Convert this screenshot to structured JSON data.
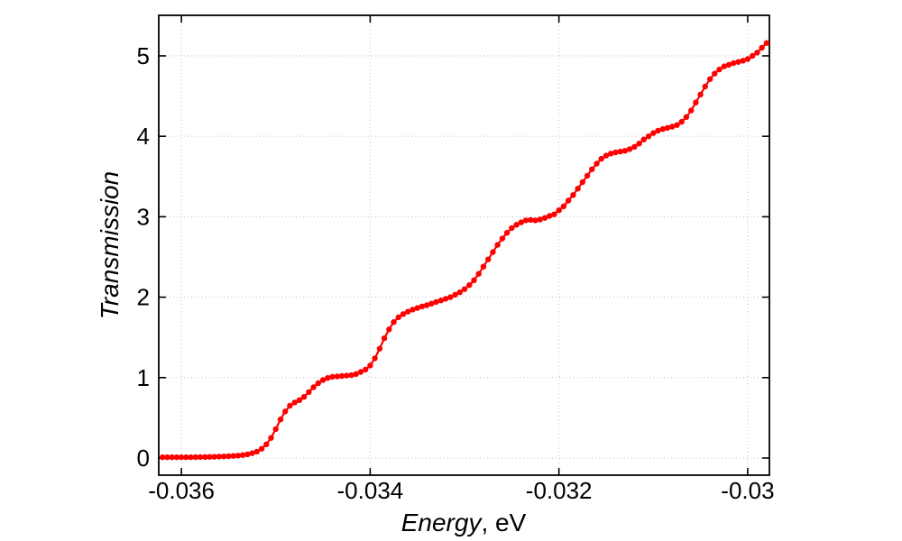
{
  "figure": {
    "background": "#ffffff",
    "colors": {
      "series_red": "#ff0000",
      "grid": "#c2c2c2",
      "axis": "#000000",
      "text": "#000000"
    }
  },
  "chart_data": {
    "type": "line",
    "title": "",
    "xlabel_parts": [
      {
        "text": "Energy",
        "italic": true
      },
      {
        "text": ", eV",
        "italic": false
      }
    ],
    "ylabel": "Transmission",
    "legend": "none",
    "grid": true,
    "marker": "filled-circle",
    "xlim": [
      -0.03624,
      -0.02977
    ],
    "ylim": [
      -0.213,
      5.504
    ],
    "x_tick_values": [
      -0.036,
      -0.034,
      -0.032,
      -0.03
    ],
    "x_tick_labels": [
      "-0.036",
      "-0.034",
      "-0.032",
      "-0.03"
    ],
    "y_tick_values": [
      0,
      1,
      2,
      3,
      4,
      5
    ],
    "y_tick_labels": [
      "0",
      "1",
      "2",
      "3",
      "4",
      "5"
    ],
    "series": [
      {
        "name": "Transmission",
        "color": "#ff0000",
        "x": [
          -0.0362,
          -0.03615,
          -0.0361,
          -0.03605,
          -0.036,
          -0.03595,
          -0.0359,
          -0.03585,
          -0.0358,
          -0.03575,
          -0.0357,
          -0.03565,
          -0.0356,
          -0.03555,
          -0.0355,
          -0.03545,
          -0.0354,
          -0.03535,
          -0.0353,
          -0.03525,
          -0.0352,
          -0.03515,
          -0.0351,
          -0.03505,
          -0.035,
          -0.03495,
          -0.0349,
          -0.03485,
          -0.0348,
          -0.03475,
          -0.0347,
          -0.03465,
          -0.0346,
          -0.03455,
          -0.0345,
          -0.03445,
          -0.0344,
          -0.03435,
          -0.0343,
          -0.03425,
          -0.0342,
          -0.03415,
          -0.0341,
          -0.03405,
          -0.034,
          -0.03395,
          -0.0339,
          -0.03385,
          -0.0338,
          -0.03375,
          -0.0337,
          -0.03365,
          -0.0336,
          -0.03355,
          -0.0335,
          -0.03345,
          -0.0334,
          -0.03335,
          -0.0333,
          -0.03325,
          -0.0332,
          -0.03315,
          -0.0331,
          -0.03305,
          -0.033,
          -0.03295,
          -0.0329,
          -0.03285,
          -0.0328,
          -0.03275,
          -0.0327,
          -0.03265,
          -0.0326,
          -0.03255,
          -0.0325,
          -0.03245,
          -0.0324,
          -0.03235,
          -0.0323,
          -0.03225,
          -0.0322,
          -0.03215,
          -0.0321,
          -0.03205,
          -0.032,
          -0.03195,
          -0.0319,
          -0.03185,
          -0.0318,
          -0.03175,
          -0.0317,
          -0.03165,
          -0.0316,
          -0.03155,
          -0.0315,
          -0.03145,
          -0.0314,
          -0.03135,
          -0.0313,
          -0.03125,
          -0.0312,
          -0.03115,
          -0.0311,
          -0.03105,
          -0.031,
          -0.03095,
          -0.0309,
          -0.03085,
          -0.0308,
          -0.03075,
          -0.0307,
          -0.03065,
          -0.0306,
          -0.03055,
          -0.0305,
          -0.03045,
          -0.0304,
          -0.03035,
          -0.0303,
          -0.03025,
          -0.0302,
          -0.03015,
          -0.0301,
          -0.03005,
          -0.03,
          -0.02995,
          -0.0299,
          -0.02985,
          -0.0298
        ],
        "y": [
          0.01,
          0.01,
          0.01,
          0.01,
          0.01,
          0.01,
          0.01,
          0.011,
          0.012,
          0.013,
          0.014,
          0.016,
          0.018,
          0.02,
          0.022,
          0.026,
          0.03,
          0.037,
          0.046,
          0.06,
          0.08,
          0.115,
          0.17,
          0.25,
          0.36,
          0.48,
          0.58,
          0.65,
          0.69,
          0.72,
          0.76,
          0.82,
          0.88,
          0.93,
          0.97,
          0.995,
          1.01,
          1.015,
          1.02,
          1.025,
          1.03,
          1.045,
          1.07,
          1.1,
          1.15,
          1.24,
          1.36,
          1.49,
          1.6,
          1.69,
          1.75,
          1.79,
          1.82,
          1.845,
          1.865,
          1.885,
          1.9,
          1.92,
          1.94,
          1.96,
          1.98,
          2.0,
          2.03,
          2.06,
          2.1,
          2.15,
          2.21,
          2.29,
          2.38,
          2.47,
          2.56,
          2.65,
          2.73,
          2.8,
          2.86,
          2.9,
          2.93,
          2.955,
          2.96,
          2.955,
          2.965,
          2.985,
          3.01,
          3.03,
          3.08,
          3.13,
          3.2,
          3.27,
          3.35,
          3.43,
          3.51,
          3.59,
          3.66,
          3.72,
          3.76,
          3.785,
          3.8,
          3.81,
          3.82,
          3.84,
          3.87,
          3.91,
          3.96,
          4.0,
          4.04,
          4.07,
          4.09,
          4.105,
          4.12,
          4.14,
          4.18,
          4.24,
          4.32,
          4.42,
          4.52,
          4.62,
          4.71,
          4.78,
          4.83,
          4.87,
          4.89,
          4.91,
          4.925,
          4.94,
          4.96,
          5.0,
          5.04,
          5.1,
          5.16
        ]
      }
    ]
  }
}
